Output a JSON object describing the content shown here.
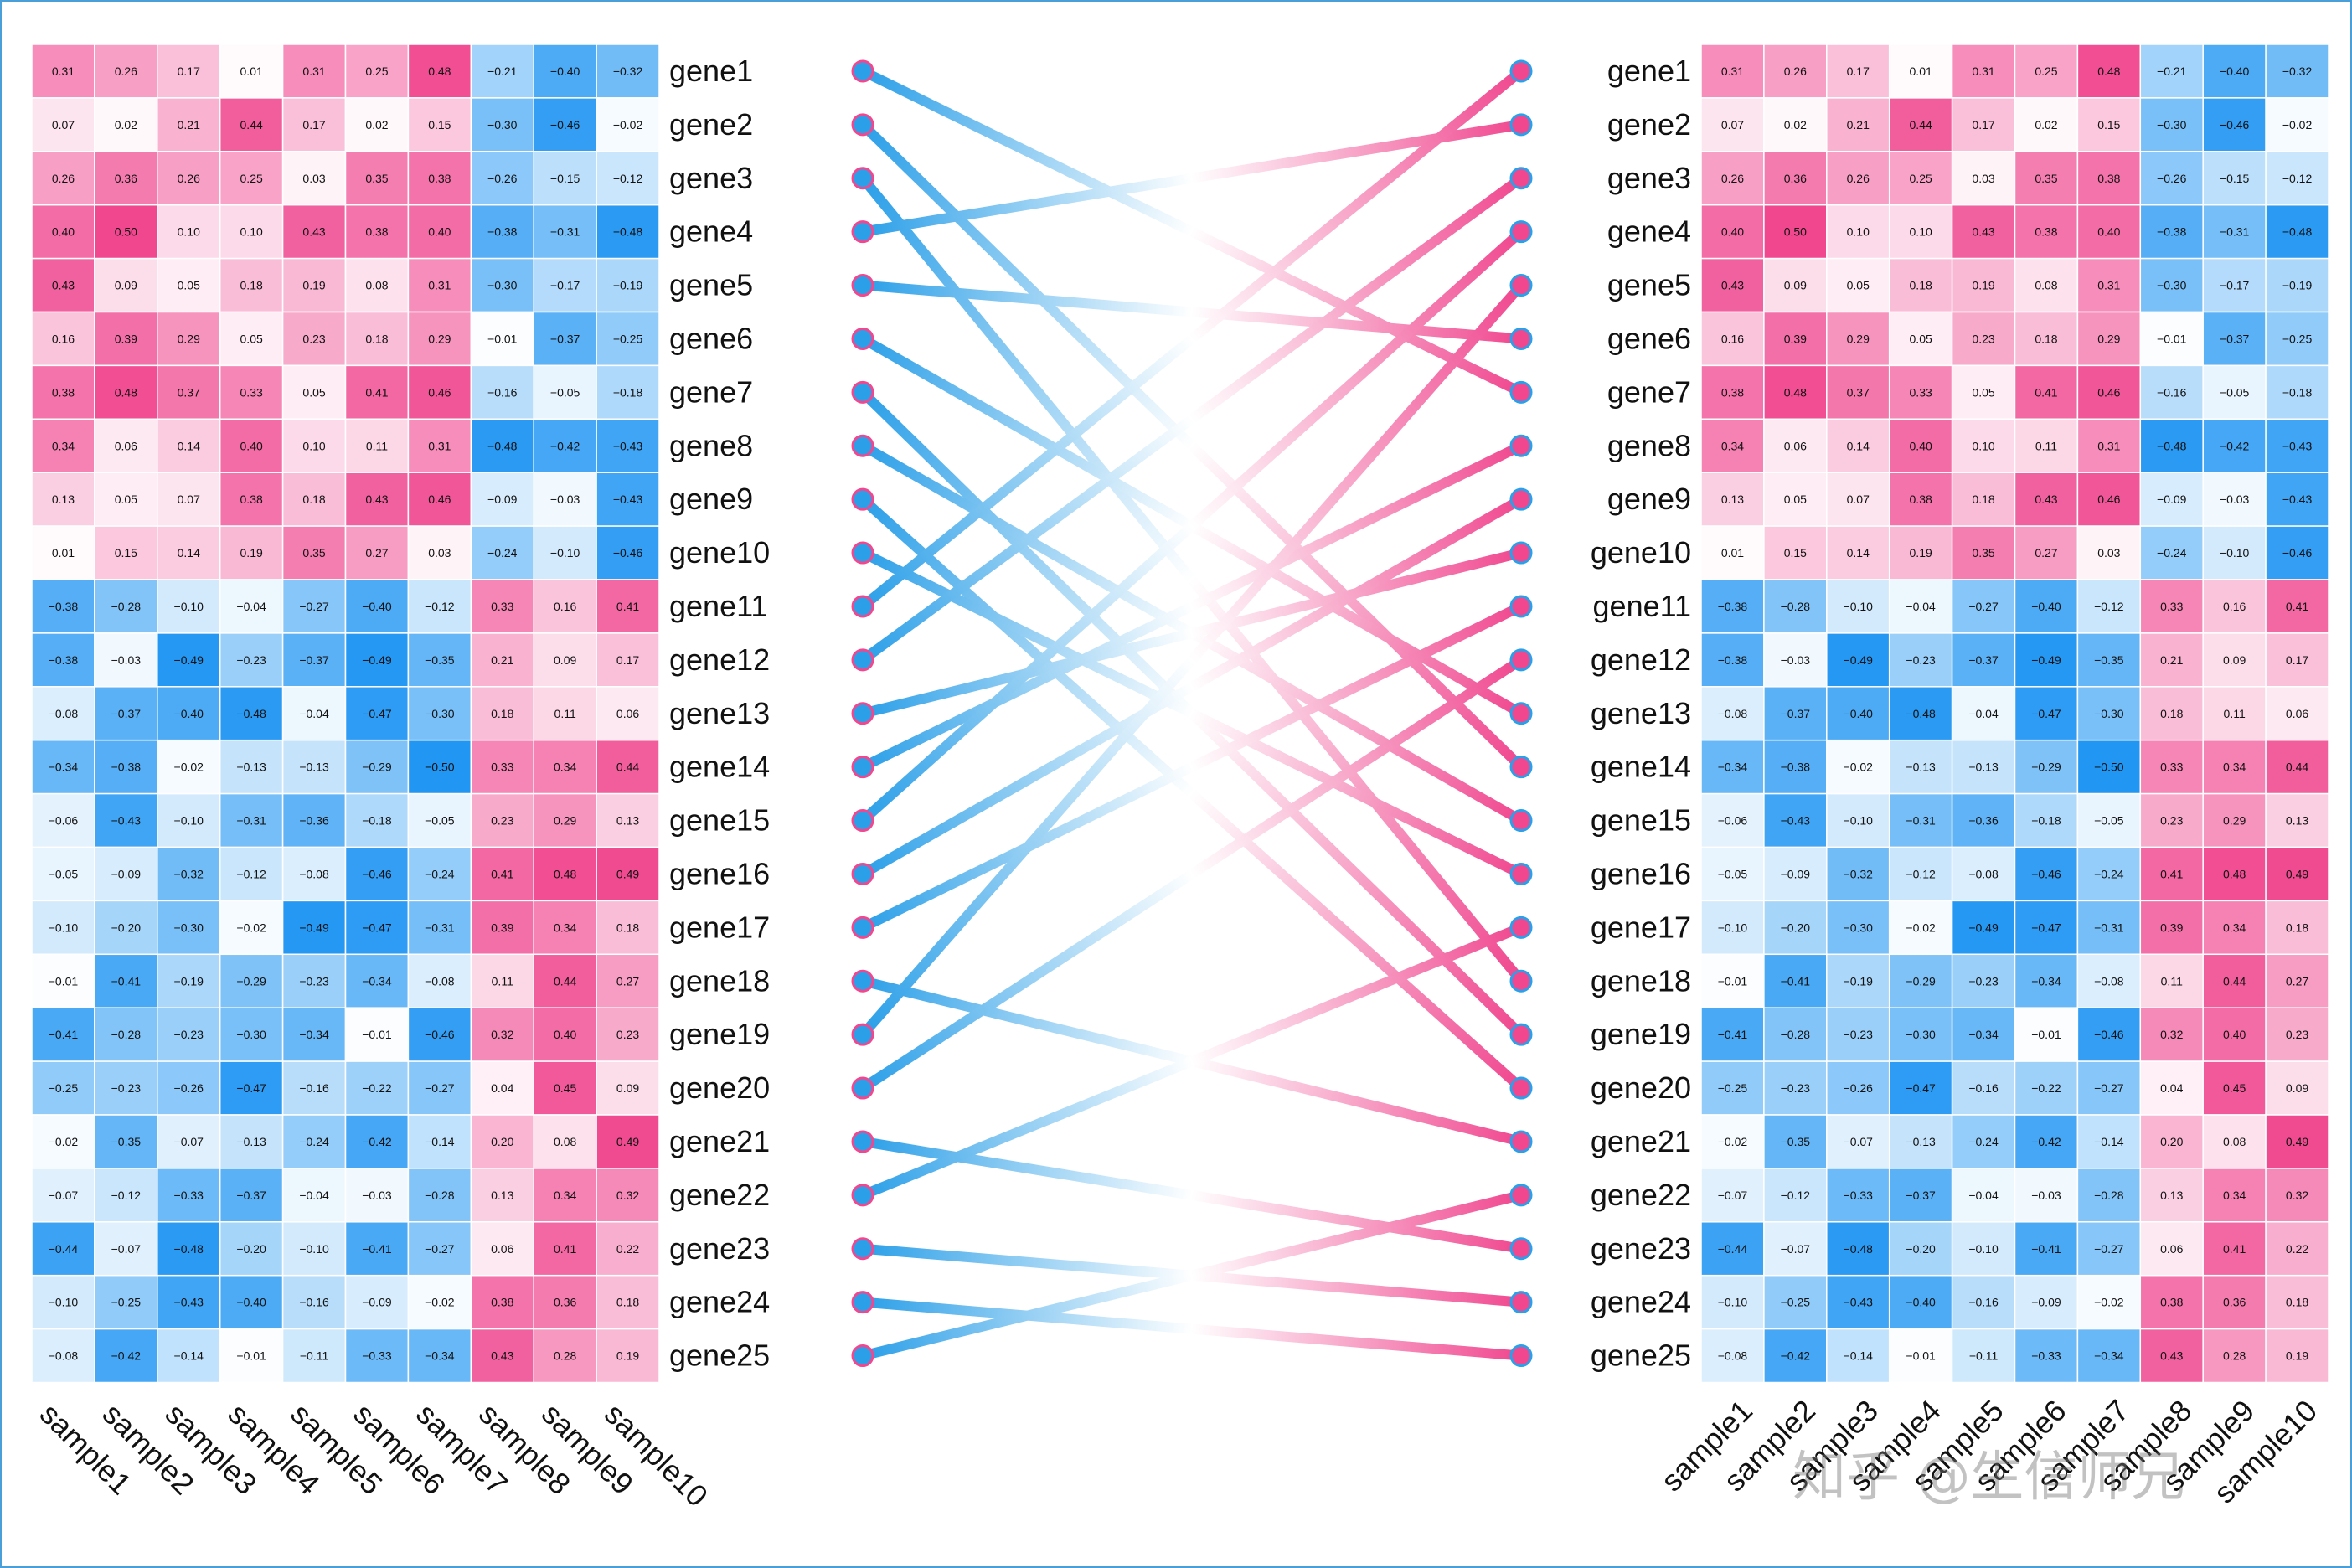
{
  "chart_data": {
    "type": "heatmap",
    "title": "",
    "genes": [
      "gene1",
      "gene2",
      "gene3",
      "gene4",
      "gene5",
      "gene6",
      "gene7",
      "gene8",
      "gene9",
      "gene10",
      "gene11",
      "gene12",
      "gene13",
      "gene14",
      "gene15",
      "gene16",
      "gene17",
      "gene18",
      "gene19",
      "gene20",
      "gene21",
      "gene22",
      "gene23",
      "gene24",
      "gene25"
    ],
    "samples": [
      "sample1",
      "sample2",
      "sample3",
      "sample4",
      "sample5",
      "sample6",
      "sample7",
      "sample8",
      "sample9",
      "sample10"
    ],
    "values": [
      [
        0.31,
        0.26,
        0.17,
        0.01,
        0.31,
        0.25,
        0.48,
        -0.21,
        -0.4,
        -0.32
      ],
      [
        0.07,
        0.02,
        0.21,
        0.44,
        0.17,
        0.02,
        0.15,
        -0.3,
        -0.46,
        -0.02
      ],
      [
        0.26,
        0.36,
        0.26,
        0.25,
        0.03,
        0.35,
        0.38,
        -0.26,
        -0.15,
        -0.12
      ],
      [
        0.4,
        0.5,
        0.1,
        0.1,
        0.43,
        0.38,
        0.4,
        -0.38,
        -0.31,
        -0.48
      ],
      [
        0.43,
        0.09,
        0.05,
        0.18,
        0.19,
        0.08,
        0.31,
        -0.3,
        -0.17,
        -0.19
      ],
      [
        0.16,
        0.39,
        0.29,
        0.05,
        0.23,
        0.18,
        0.29,
        -0.01,
        -0.37,
        -0.25
      ],
      [
        0.38,
        0.48,
        0.37,
        0.33,
        0.05,
        0.41,
        0.46,
        -0.16,
        -0.05,
        -0.18
      ],
      [
        0.34,
        0.06,
        0.14,
        0.4,
        0.1,
        0.11,
        0.31,
        -0.48,
        -0.42,
        -0.43
      ],
      [
        0.13,
        0.05,
        0.07,
        0.38,
        0.18,
        0.43,
        0.46,
        -0.09,
        -0.03,
        -0.43
      ],
      [
        0.01,
        0.15,
        0.14,
        0.19,
        0.35,
        0.27,
        0.03,
        -0.24,
        -0.1,
        -0.46
      ],
      [
        -0.38,
        -0.28,
        -0.1,
        -0.04,
        -0.27,
        -0.4,
        -0.12,
        0.33,
        0.16,
        0.41
      ],
      [
        -0.38,
        -0.03,
        -0.49,
        -0.23,
        -0.37,
        -0.49,
        -0.35,
        0.21,
        0.09,
        0.17
      ],
      [
        -0.08,
        -0.37,
        -0.4,
        -0.48,
        -0.04,
        -0.47,
        -0.3,
        0.18,
        0.11,
        0.06
      ],
      [
        -0.34,
        -0.38,
        -0.02,
        -0.13,
        -0.13,
        -0.29,
        -0.5,
        0.33,
        0.34,
        0.44
      ],
      [
        -0.06,
        -0.43,
        -0.1,
        -0.31,
        -0.36,
        -0.18,
        -0.05,
        0.23,
        0.29,
        0.13
      ],
      [
        -0.05,
        -0.09,
        -0.32,
        -0.12,
        -0.08,
        -0.46,
        -0.24,
        0.41,
        0.48,
        0.49
      ],
      [
        -0.1,
        -0.2,
        -0.3,
        -0.02,
        -0.49,
        -0.47,
        -0.31,
        0.39,
        0.34,
        0.18
      ],
      [
        -0.01,
        -0.41,
        -0.19,
        -0.29,
        -0.23,
        -0.34,
        -0.08,
        0.11,
        0.44,
        0.27
      ],
      [
        -0.41,
        -0.28,
        -0.23,
        -0.3,
        -0.34,
        -0.01,
        -0.46,
        0.32,
        0.4,
        0.23
      ],
      [
        -0.25,
        -0.23,
        -0.26,
        -0.47,
        -0.16,
        -0.22,
        -0.27,
        0.04,
        0.45,
        0.09
      ],
      [
        -0.02,
        -0.35,
        -0.07,
        -0.13,
        -0.24,
        -0.42,
        -0.14,
        0.2,
        0.08,
        0.49
      ],
      [
        -0.07,
        -0.12,
        -0.33,
        -0.37,
        -0.04,
        -0.03,
        -0.28,
        0.13,
        0.34,
        0.32
      ],
      [
        -0.44,
        -0.07,
        -0.48,
        -0.2,
        -0.1,
        -0.41,
        -0.27,
        0.06,
        0.41,
        0.22
      ],
      [
        -0.1,
        -0.25,
        -0.43,
        -0.4,
        -0.16,
        -0.09,
        -0.02,
        0.38,
        0.36,
        0.18
      ],
      [
        -0.08,
        -0.42,
        -0.14,
        -0.01,
        -0.11,
        -0.33,
        -0.34,
        0.43,
        0.28,
        0.19
      ]
    ],
    "value_range": [
      -0.5,
      0.5
    ],
    "color_low": "#2196f3",
    "color_mid": "#ffffff",
    "color_high": "#f0478f",
    "connections": [
      {
        "from": 1,
        "to": 7
      },
      {
        "from": 2,
        "to": 14
      },
      {
        "from": 3,
        "to": 18
      },
      {
        "from": 4,
        "to": 2
      },
      {
        "from": 5,
        "to": 6
      },
      {
        "from": 6,
        "to": 13
      },
      {
        "from": 7,
        "to": 19
      },
      {
        "from": 8,
        "to": 15
      },
      {
        "from": 9,
        "to": 20
      },
      {
        "from": 10,
        "to": 16
      },
      {
        "from": 11,
        "to": 1
      },
      {
        "from": 12,
        "to": 3
      },
      {
        "from": 13,
        "to": 10
      },
      {
        "from": 14,
        "to": 8
      },
      {
        "from": 15,
        "to": 4
      },
      {
        "from": 16,
        "to": 9
      },
      {
        "from": 17,
        "to": 11
      },
      {
        "from": 18,
        "to": 21
      },
      {
        "from": 19,
        "to": 5
      },
      {
        "from": 20,
        "to": 12
      },
      {
        "from": 21,
        "to": 23
      },
      {
        "from": 22,
        "to": 17
      },
      {
        "from": 23,
        "to": 24
      },
      {
        "from": 24,
        "to": 25
      },
      {
        "from": 25,
        "to": 22
      }
    ],
    "line_color_left": "#2b9fe8",
    "line_color_right": "#f0478f",
    "dot_fill_left": "#2b9fe8",
    "dot_fill_right": "#f0478f"
  },
  "watermark": "知乎 @生信师兄"
}
